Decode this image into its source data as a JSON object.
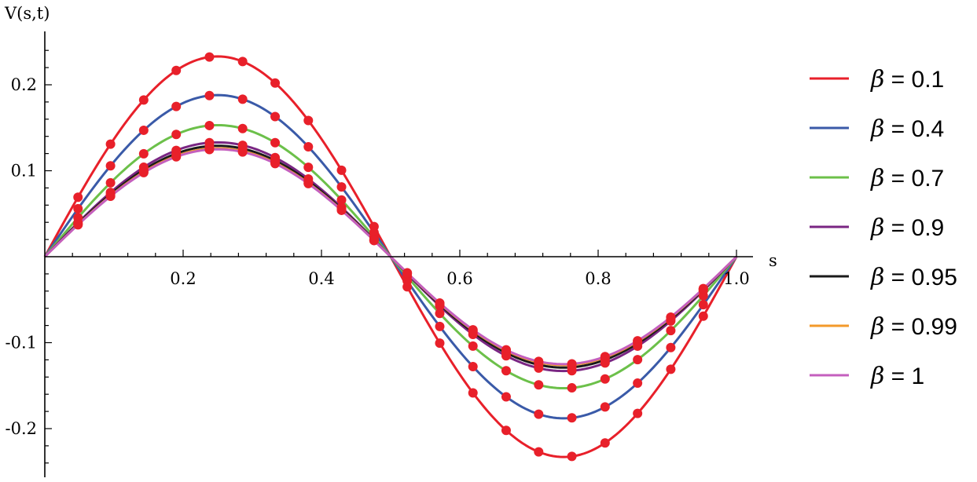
{
  "chart_data": {
    "type": "line",
    "title": "",
    "xlabel": "s",
    "ylabel": "V(s,t)",
    "xlim": [
      0,
      1.0
    ],
    "ylim": [
      -0.26,
      0.26
    ],
    "x_ticks": [
      {
        "value": 0.2,
        "label": "0.2"
      },
      {
        "value": 0.4,
        "label": "0.4"
      },
      {
        "value": 0.6,
        "label": "0.6"
      },
      {
        "value": 0.8,
        "label": "0.8"
      },
      {
        "value": 1.0,
        "label": "1.0"
      }
    ],
    "y_ticks": [
      {
        "value": 0.2,
        "label": "0.2"
      },
      {
        "value": 0.1,
        "label": "0.1"
      },
      {
        "value": -0.1,
        "label": "-0.1"
      },
      {
        "value": -0.2,
        "label": "-0.2"
      }
    ],
    "grid": false,
    "legend_position": "right",
    "marker_color": "#e8202a",
    "marker_x": [
      0.048,
      0.095,
      0.143,
      0.19,
      0.238,
      0.286,
      0.333,
      0.381,
      0.429,
      0.476,
      0.524,
      0.571,
      0.619,
      0.667,
      0.714,
      0.762,
      0.81,
      0.857,
      0.905,
      0.952
    ],
    "series": [
      {
        "name": "β = 0.1",
        "color": "#e8202a",
        "peak": 0.233,
        "x": [
          0,
          0.048,
          0.095,
          0.143,
          0.19,
          0.238,
          0.286,
          0.333,
          0.381,
          0.429,
          0.476,
          0.5,
          0.524,
          0.571,
          0.619,
          0.667,
          0.714,
          0.762,
          0.81,
          0.857,
          0.905,
          0.952,
          1.0
        ],
        "y": [
          0,
          0.069,
          0.132,
          0.182,
          0.216,
          0.233,
          0.227,
          0.2,
          0.157,
          0.102,
          0.035,
          0,
          -0.035,
          -0.102,
          -0.157,
          -0.2,
          -0.227,
          -0.233,
          -0.216,
          -0.182,
          -0.132,
          -0.069,
          0
        ]
      },
      {
        "name": "β = 0.4",
        "color": "#3a5aa8",
        "peak": 0.188,
        "x": [
          0,
          0.048,
          0.095,
          0.143,
          0.19,
          0.238,
          0.286,
          0.333,
          0.381,
          0.429,
          0.476,
          0.5,
          0.524,
          0.571,
          0.619,
          0.667,
          0.714,
          0.762,
          0.81,
          0.857,
          0.905,
          0.952,
          1.0
        ],
        "y": [
          0,
          0.056,
          0.107,
          0.147,
          0.175,
          0.188,
          0.184,
          0.164,
          0.128,
          0.082,
          0.028,
          0,
          -0.028,
          -0.082,
          -0.128,
          -0.164,
          -0.184,
          -0.188,
          -0.175,
          -0.147,
          -0.107,
          -0.056,
          0
        ]
      },
      {
        "name": "β = 0.7",
        "color": "#6cc04a",
        "peak": 0.153,
        "x": [
          0,
          0.048,
          0.095,
          0.143,
          0.19,
          0.238,
          0.286,
          0.333,
          0.381,
          0.429,
          0.476,
          0.5,
          0.524,
          0.571,
          0.619,
          0.667,
          0.714,
          0.762,
          0.81,
          0.857,
          0.905,
          0.952,
          1.0
        ],
        "y": [
          0,
          0.046,
          0.087,
          0.12,
          0.143,
          0.153,
          0.15,
          0.133,
          0.104,
          0.067,
          0.023,
          0,
          -0.023,
          -0.067,
          -0.104,
          -0.133,
          -0.15,
          -0.153,
          -0.143,
          -0.12,
          -0.087,
          -0.046,
          0
        ]
      },
      {
        "name": "β = 0.9",
        "color": "#7a2683",
        "peak": 0.133,
        "x": [
          0,
          0.048,
          0.095,
          0.143,
          0.19,
          0.238,
          0.286,
          0.333,
          0.381,
          0.429,
          0.476,
          0.5,
          0.524,
          0.571,
          0.619,
          0.667,
          0.714,
          0.762,
          0.81,
          0.857,
          0.905,
          0.952,
          1.0
        ],
        "y": [
          0,
          0.04,
          0.075,
          0.104,
          0.124,
          0.133,
          0.13,
          0.115,
          0.09,
          0.058,
          0.02,
          0,
          -0.02,
          -0.058,
          -0.09,
          -0.115,
          -0.13,
          -0.133,
          -0.124,
          -0.104,
          -0.075,
          -0.04,
          0
        ]
      },
      {
        "name": "β = 0.95",
        "color": "#1a1a1a",
        "peak": 0.129,
        "x": [
          0,
          0.048,
          0.095,
          0.143,
          0.19,
          0.238,
          0.286,
          0.333,
          0.381,
          0.429,
          0.476,
          0.5,
          0.524,
          0.571,
          0.619,
          0.667,
          0.714,
          0.762,
          0.81,
          0.857,
          0.905,
          0.952,
          1.0
        ],
        "y": [
          0,
          0.038,
          0.073,
          0.101,
          0.12,
          0.129,
          0.126,
          0.111,
          0.087,
          0.056,
          0.019,
          0,
          -0.019,
          -0.056,
          -0.087,
          -0.111,
          -0.126,
          -0.129,
          -0.12,
          -0.101,
          -0.073,
          -0.038,
          0
        ]
      },
      {
        "name": "β = 0.99",
        "color": "#f39a2a",
        "peak": 0.126,
        "x": [
          0,
          0.048,
          0.095,
          0.143,
          0.19,
          0.238,
          0.286,
          0.333,
          0.381,
          0.429,
          0.476,
          0.5,
          0.524,
          0.571,
          0.619,
          0.667,
          0.714,
          0.762,
          0.81,
          0.857,
          0.905,
          0.952,
          1.0
        ],
        "y": [
          0,
          0.037,
          0.071,
          0.098,
          0.117,
          0.126,
          0.123,
          0.108,
          0.085,
          0.055,
          0.019,
          0,
          -0.019,
          -0.055,
          -0.085,
          -0.108,
          -0.123,
          -0.126,
          -0.117,
          -0.098,
          -0.071,
          -0.037,
          0
        ]
      },
      {
        "name": "β = 1",
        "color": "#c45fbe",
        "peak": 0.125,
        "x": [
          0,
          0.048,
          0.095,
          0.143,
          0.19,
          0.238,
          0.286,
          0.333,
          0.381,
          0.429,
          0.476,
          0.5,
          0.524,
          0.571,
          0.619,
          0.667,
          0.714,
          0.762,
          0.81,
          0.857,
          0.905,
          0.952,
          1.0
        ],
        "y": [
          0,
          0.037,
          0.071,
          0.098,
          0.116,
          0.125,
          0.122,
          0.107,
          0.084,
          0.055,
          0.019,
          0,
          -0.019,
          -0.055,
          -0.084,
          -0.107,
          -0.122,
          -0.125,
          -0.116,
          -0.098,
          -0.071,
          -0.037,
          0
        ]
      }
    ]
  }
}
